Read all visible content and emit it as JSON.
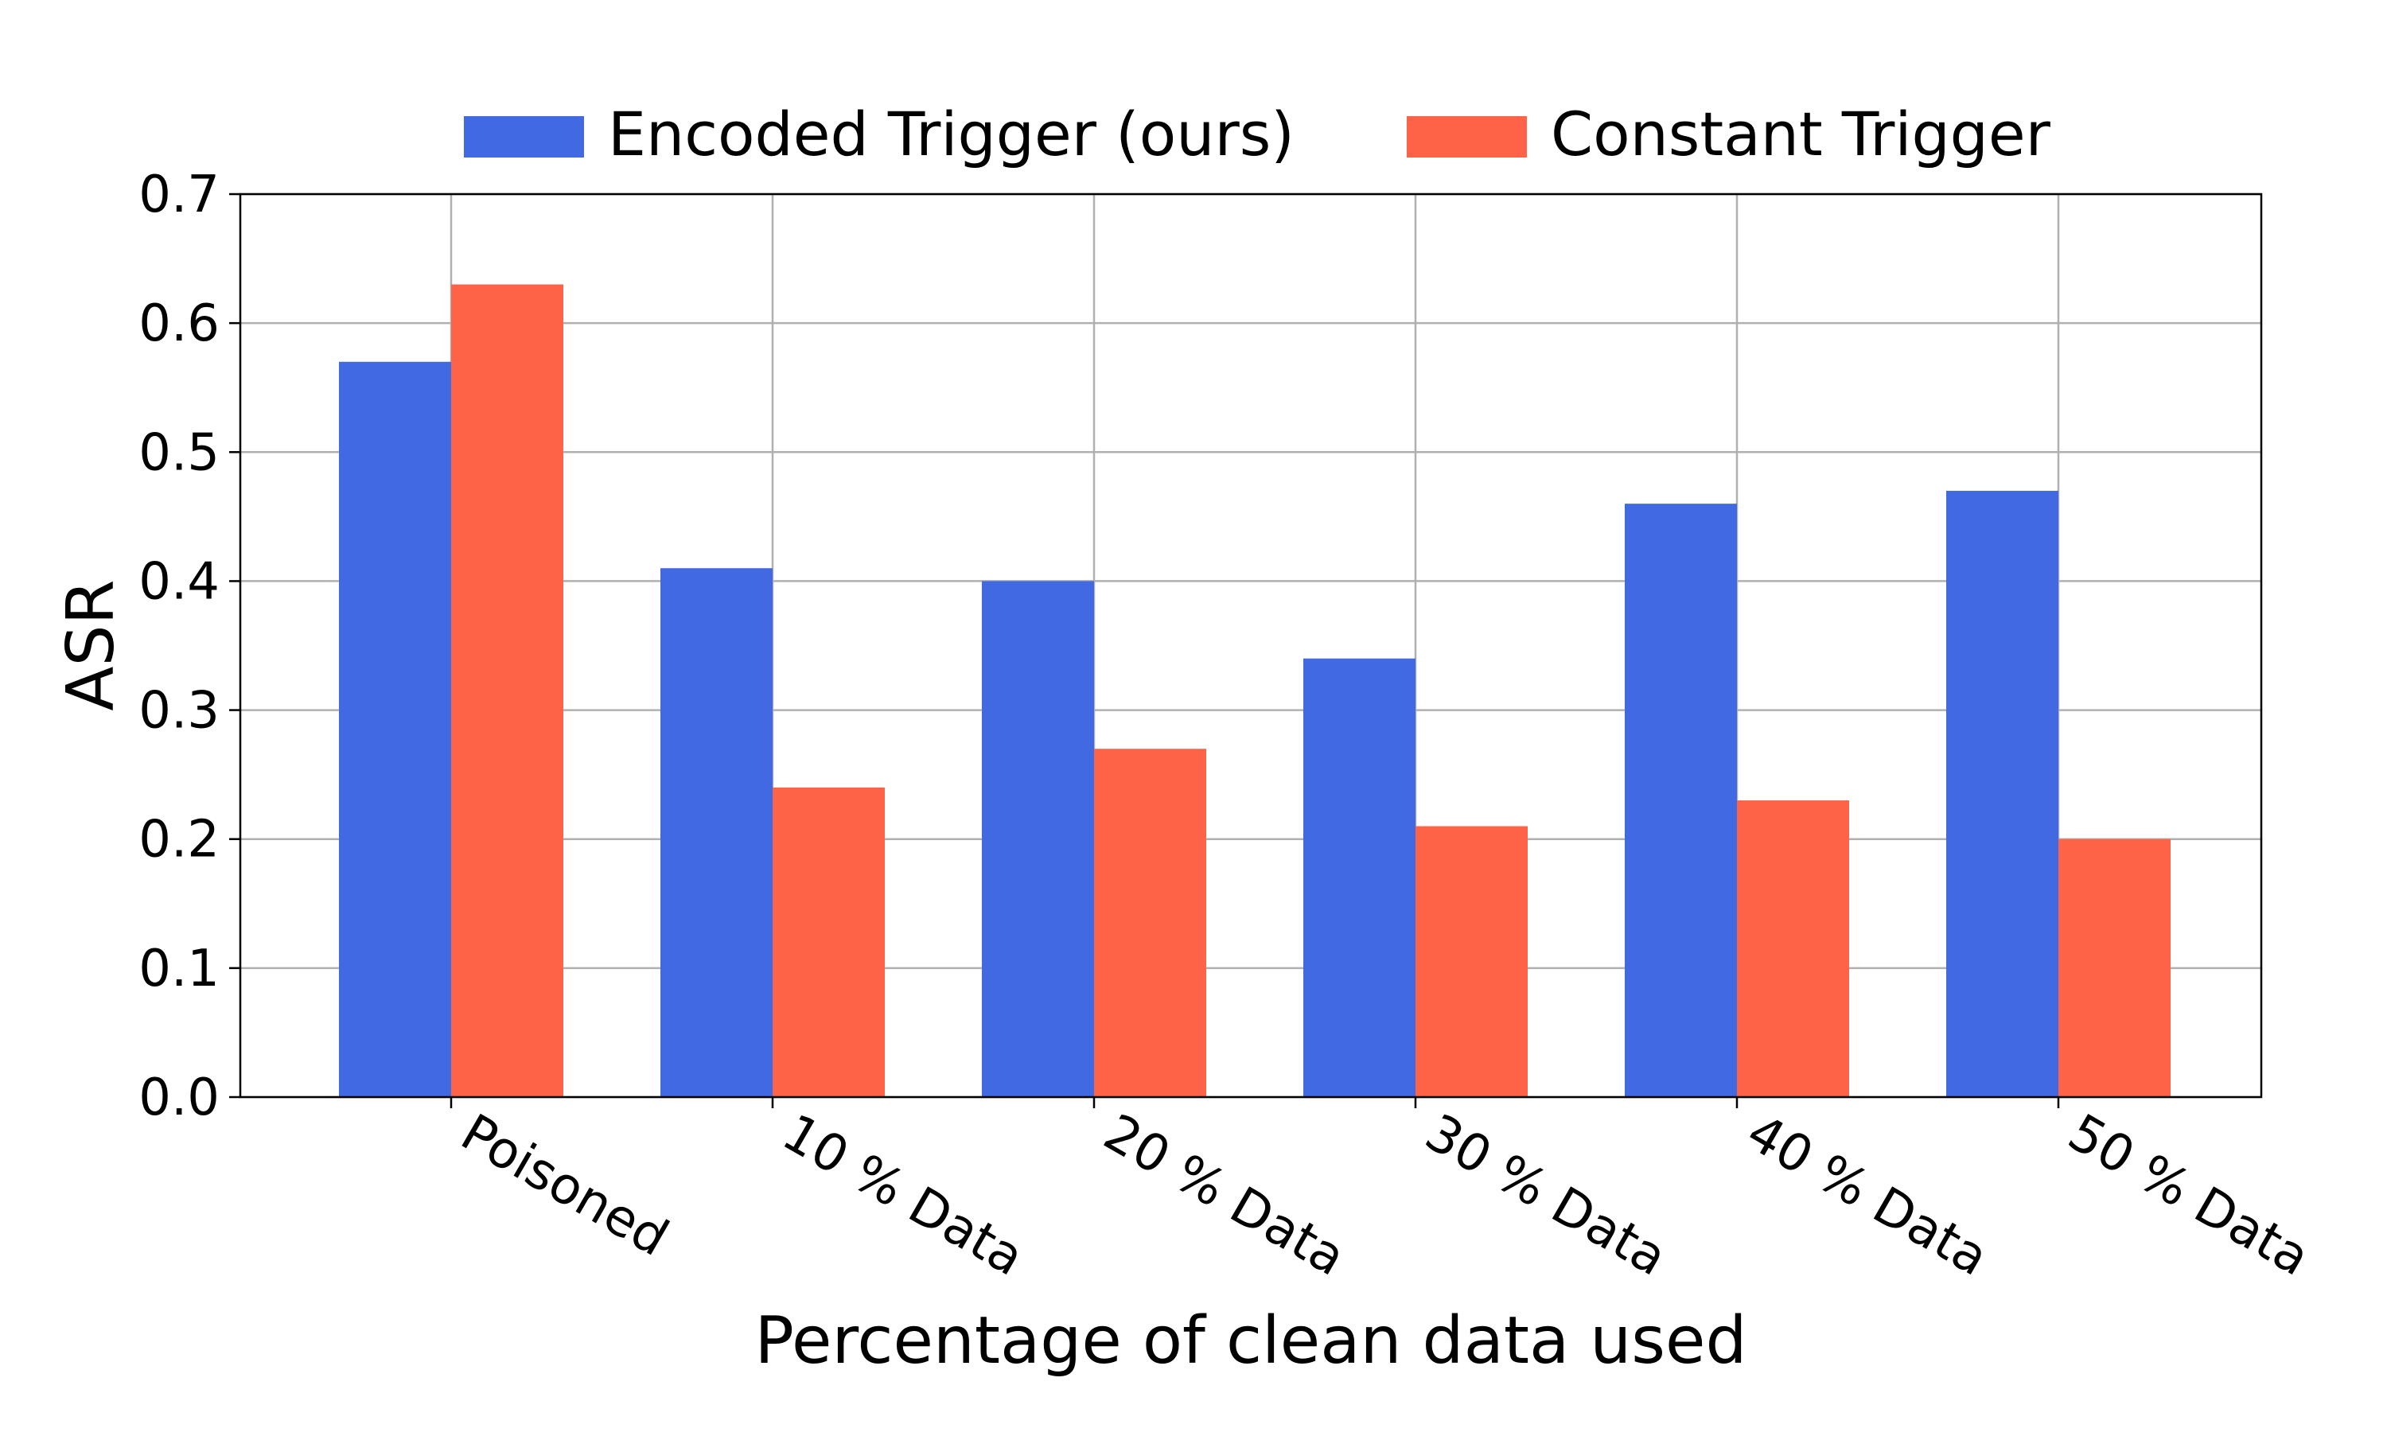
{
  "chart_data": {
    "type": "bar",
    "title": "",
    "xlabel": "Percentage of clean data used",
    "ylabel": "ASR",
    "categories": [
      "Poisoned",
      "10 % Data",
      "20 % Data",
      "30 % Data",
      "40 % Data",
      "50 % Data"
    ],
    "series": [
      {
        "name": "Encoded Trigger (ours)",
        "color": "#4169E1",
        "values": [
          0.57,
          0.41,
          0.4,
          0.34,
          0.46,
          0.47
        ]
      },
      {
        "name": "Constant Trigger",
        "color": "#FF6347",
        "values": [
          0.63,
          0.24,
          0.27,
          0.21,
          0.23,
          0.2
        ]
      }
    ],
    "ylim": [
      0.0,
      0.7
    ],
    "yticks": [
      "0.0",
      "0.1",
      "0.2",
      "0.3",
      "0.4",
      "0.5",
      "0.6",
      "0.7"
    ],
    "grid": true,
    "legend_position": "top"
  }
}
